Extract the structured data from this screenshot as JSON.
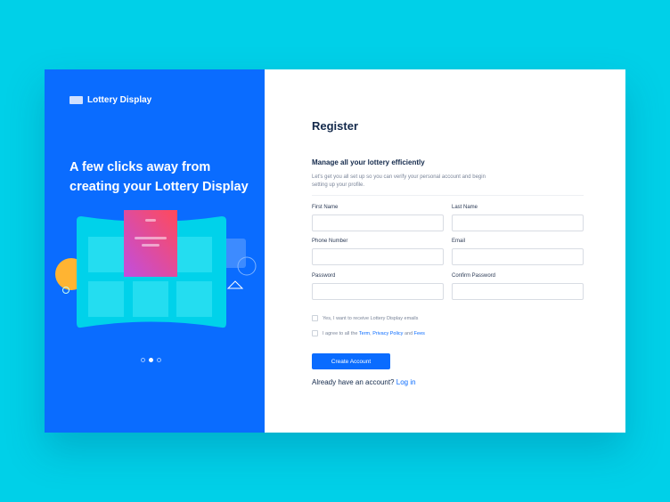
{
  "brand": {
    "name": "Lottery Display"
  },
  "hero": {
    "headline": "A few clicks away from creating your Lottery Display",
    "slides": 3,
    "active_slide": 2
  },
  "form": {
    "title": "Register",
    "subtitle": "Manage all your lottery efficiently",
    "description": "Let's get you all set up so you can verify your personal account and begin setting up your profile.",
    "fields": {
      "first_name": "First Name",
      "last_name": "Last Name",
      "phone": "Phone Number",
      "email": "Email",
      "password": "Password",
      "confirm_password": "Confirm Password"
    },
    "checkbox_emails": "Yes, I want to receive Lottery Display emails",
    "terms": {
      "prefix": "I agree to all the",
      "term": "Term",
      "sep": ",",
      "privacy": "Privacy Policy",
      "and": "and",
      "fees": "Fees"
    },
    "submit": "Create Account",
    "login_prompt": "Already have an account?",
    "login_link": "Log in"
  },
  "colors": {
    "primary": "#0a6cff",
    "background": "#00d0e8",
    "heading": "#13294b"
  }
}
